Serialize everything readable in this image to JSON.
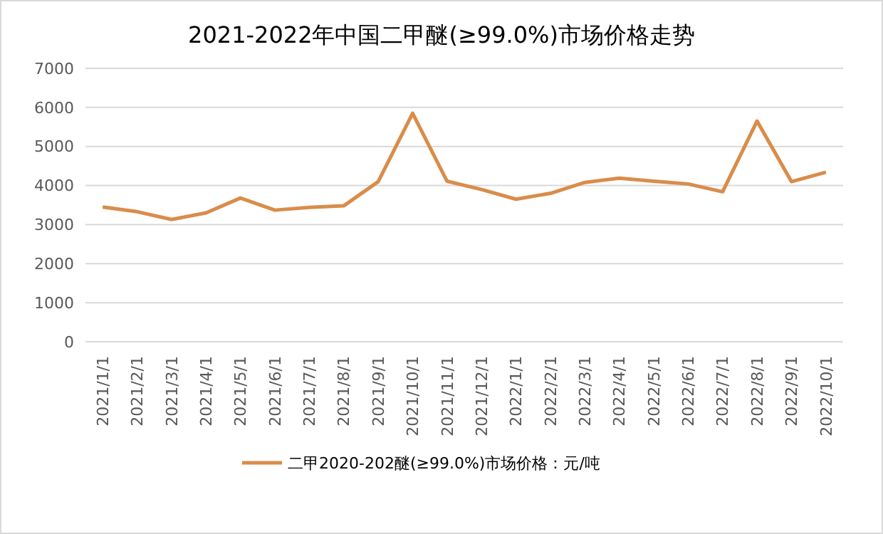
{
  "chart_data": {
    "type": "line",
    "title": "2021-2022年中国二甲醚(≥99.0%)市场价格走势",
    "categories": [
      "2021/1/1",
      "2021/2/1",
      "2021/3/1",
      "2021/4/1",
      "2021/5/1",
      "2021/6/1",
      "2021/7/1",
      "2021/8/1",
      "2021/9/1",
      "2021/10/1",
      "2021/11/1",
      "2021/12/1",
      "2022/1/1",
      "2022/2/1",
      "2022/3/1",
      "2022/4/1",
      "2022/5/1",
      "2022/6/1",
      "2022/7/1",
      "2022/8/1",
      "2022/9/1",
      "2022/10/1"
    ],
    "series": [
      {
        "name": "二甲2020-202醚(≥99.0%)市场价格：元/吨",
        "color": "#d98c4a",
        "values": [
          3450,
          3330,
          3130,
          3300,
          3680,
          3370,
          3440,
          3480,
          4100,
          5850,
          4110,
          3900,
          3650,
          3800,
          4080,
          4190,
          4110,
          4040,
          3840,
          5650,
          4100,
          4340
        ]
      }
    ],
    "ylim": [
      0,
      7000
    ],
    "yticks": [
      0,
      1000,
      2000,
      3000,
      4000,
      5000,
      6000,
      7000
    ],
    "grid": "y",
    "legend": "bottom",
    "marker": "none",
    "line_style": "solid"
  }
}
